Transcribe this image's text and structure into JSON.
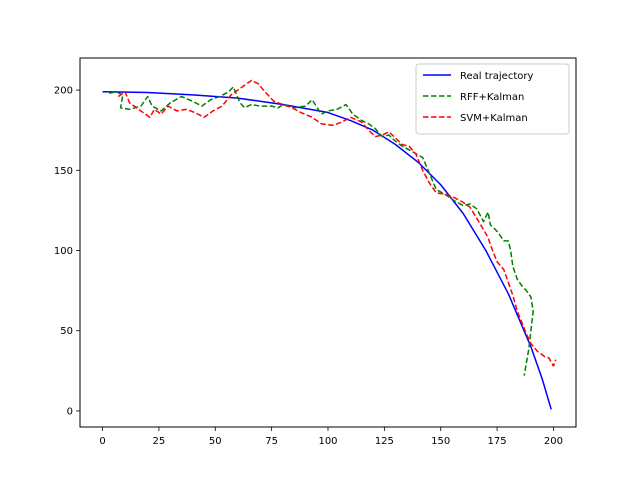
{
  "chart_data": {
    "type": "line",
    "xlim": [
      -10,
      210
    ],
    "ylim": [
      -10,
      220
    ],
    "x_ticks": [
      0,
      25,
      50,
      75,
      100,
      125,
      150,
      175,
      200
    ],
    "y_ticks": [
      0,
      50,
      100,
      150,
      200
    ],
    "x_tick_labels": [
      "0",
      "25",
      "50",
      "75",
      "100",
      "125",
      "150",
      "175",
      "200"
    ],
    "y_tick_labels": [
      "0",
      "50",
      "100",
      "150",
      "200"
    ],
    "grid": false,
    "legend_position": "top-right",
    "series": [
      {
        "name": "Real trajectory",
        "color": "#0000ff",
        "dash": "solid",
        "points": [
          [
            0,
            199
          ],
          [
            20,
            198.5
          ],
          [
            40,
            197
          ],
          [
            60,
            195
          ],
          [
            80,
            191
          ],
          [
            100,
            186
          ],
          [
            110,
            181
          ],
          [
            120,
            175
          ],
          [
            130,
            166
          ],
          [
            140,
            155
          ],
          [
            150,
            141
          ],
          [
            160,
            123
          ],
          [
            170,
            100
          ],
          [
            180,
            73
          ],
          [
            190,
            40
          ],
          [
            195,
            20
          ],
          [
            199,
            1
          ]
        ]
      },
      {
        "name": "RFF+Kalman",
        "color": "#008000",
        "dash": "dashed",
        "points": [
          [
            3,
            198
          ],
          [
            6,
            199
          ],
          [
            9,
            197
          ],
          [
            8,
            189
          ],
          [
            12,
            188
          ],
          [
            17,
            190
          ],
          [
            20,
            196
          ],
          [
            22,
            190
          ],
          [
            26,
            187
          ],
          [
            30,
            192
          ],
          [
            35,
            196
          ],
          [
            40,
            193
          ],
          [
            44,
            190
          ],
          [
            48,
            194
          ],
          [
            52,
            196
          ],
          [
            56,
            199
          ],
          [
            58,
            202
          ],
          [
            61,
            192
          ],
          [
            63,
            189
          ],
          [
            66,
            191
          ],
          [
            70,
            190
          ],
          [
            75,
            190
          ],
          [
            78,
            189
          ],
          [
            80,
            191
          ],
          [
            85,
            189
          ],
          [
            90,
            190
          ],
          [
            93,
            194
          ],
          [
            97,
            185
          ],
          [
            100,
            187
          ],
          [
            104,
            188
          ],
          [
            108,
            191
          ],
          [
            111,
            185
          ],
          [
            115,
            181
          ],
          [
            118,
            179
          ],
          [
            121,
            176
          ],
          [
            124,
            171
          ],
          [
            127,
            172
          ],
          [
            130,
            168
          ],
          [
            133,
            165
          ],
          [
            137,
            162
          ],
          [
            142,
            158
          ],
          [
            145,
            148
          ],
          [
            148,
            138
          ],
          [
            152,
            135
          ],
          [
            156,
            131
          ],
          [
            160,
            128
          ],
          [
            163,
            129
          ],
          [
            166,
            126
          ],
          [
            169,
            118
          ],
          [
            171,
            124
          ],
          [
            172,
            116
          ],
          [
            175,
            112
          ],
          [
            178,
            106
          ],
          [
            180,
            106
          ],
          [
            181,
            100
          ],
          [
            182,
            90
          ],
          [
            184,
            82
          ],
          [
            186,
            78
          ],
          [
            188,
            75
          ],
          [
            190,
            71
          ],
          [
            191,
            62
          ],
          [
            190,
            50
          ],
          [
            189,
            38
          ],
          [
            188,
            30
          ],
          [
            187,
            22
          ]
        ]
      },
      {
        "name": "SVM+Kalman",
        "color": "#ff0000",
        "dash": "dashed",
        "points": [
          [
            7,
            196
          ],
          [
            10,
            199
          ],
          [
            12,
            192
          ],
          [
            15,
            189
          ],
          [
            18,
            186
          ],
          [
            21,
            183
          ],
          [
            23,
            188
          ],
          [
            26,
            185
          ],
          [
            29,
            190
          ],
          [
            33,
            187
          ],
          [
            37,
            188
          ],
          [
            41,
            186
          ],
          [
            45,
            183
          ],
          [
            49,
            187
          ],
          [
            53,
            190
          ],
          [
            57,
            197
          ],
          [
            61,
            201
          ],
          [
            66,
            206
          ],
          [
            69,
            204
          ],
          [
            72,
            199
          ],
          [
            76,
            193
          ],
          [
            80,
            191
          ],
          [
            84,
            189
          ],
          [
            88,
            186
          ],
          [
            93,
            183
          ],
          [
            97,
            179
          ],
          [
            102,
            178
          ],
          [
            106,
            180
          ],
          [
            110,
            183
          ],
          [
            115,
            180
          ],
          [
            118,
            175
          ],
          [
            121,
            171
          ],
          [
            124,
            172
          ],
          [
            127,
            174
          ],
          [
            130,
            170
          ],
          [
            133,
            166
          ],
          [
            136,
            165
          ],
          [
            139,
            160
          ],
          [
            142,
            150
          ],
          [
            145,
            142
          ],
          [
            148,
            136
          ],
          [
            152,
            135
          ],
          [
            156,
            133
          ],
          [
            160,
            130
          ],
          [
            163,
            127
          ],
          [
            166,
            120
          ],
          [
            169,
            113
          ],
          [
            171,
            108
          ],
          [
            173,
            100
          ],
          [
            175,
            93
          ],
          [
            178,
            88
          ],
          [
            180,
            80
          ],
          [
            182,
            72
          ],
          [
            184,
            62
          ],
          [
            186,
            55
          ],
          [
            188,
            48
          ],
          [
            190,
            42
          ],
          [
            193,
            37
          ],
          [
            196,
            34
          ],
          [
            198,
            33
          ],
          [
            200,
            28
          ],
          [
            201,
            32
          ]
        ]
      }
    ]
  }
}
